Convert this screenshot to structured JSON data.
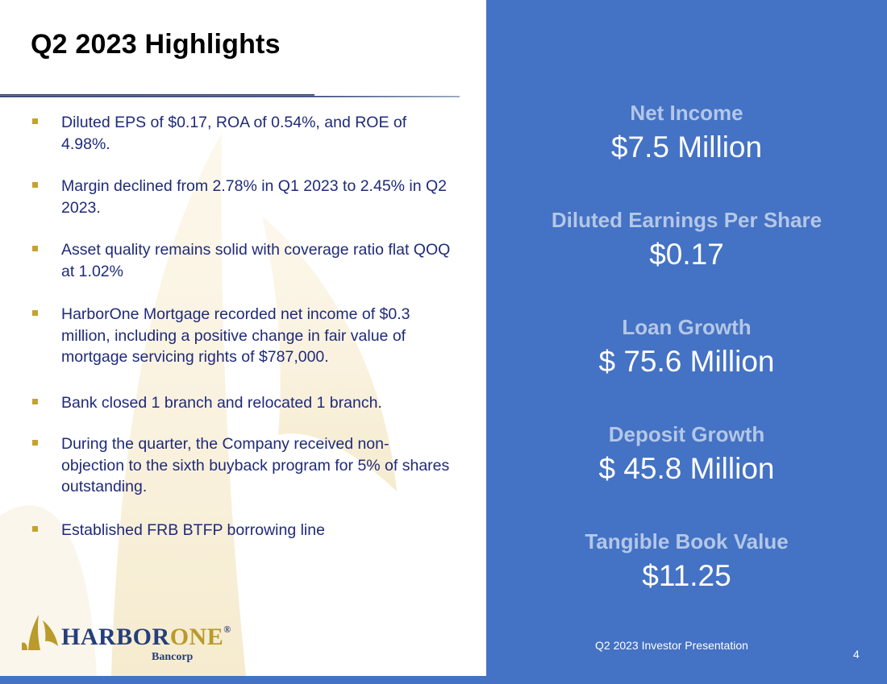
{
  "slide": {
    "title": "Q2 2023 Highlights",
    "bullets": [
      "Diluted EPS of $0.17, ROA of 0.54%, and ROE of 4.98%.",
      "Margin declined from 2.78% in Q1 2023 to 2.45% in Q2 2023.",
      "Asset quality remains solid with coverage ratio flat QOQ at 1.02%",
      "HarborOne Mortgage recorded net income of $0.3 million, including a positive change in fair value of mortgage servicing rights of $787,000.",
      "Bank closed 1 branch and relocated 1 branch.",
      "During the quarter, the Company received non-objection to the sixth buyback program  for 5% of shares outstanding.",
      "Established FRB BTFP borrowing line"
    ],
    "stats": [
      {
        "label": "Net Income",
        "value": "$7.5 Million"
      },
      {
        "label": "Diluted Earnings Per Share",
        "value": "$0.17"
      },
      {
        "label": "Loan Growth",
        "value": "$ 75.6 Million"
      },
      {
        "label": "Deposit Growth",
        "value": "$ 45.8 Million"
      },
      {
        "label": "Tangible Book Value",
        "value": "$11.25"
      }
    ],
    "footer": "Q2 2023 Investor Presentation",
    "page_number": "4"
  },
  "logo": {
    "word_part1": "HARBOR",
    "word_part2": "ONE",
    "registered": "®",
    "subtitle": "Bancorp"
  },
  "colors": {
    "panel_blue": "#4472c4",
    "stat_label": "#b4c7e7",
    "bullet_text": "#1f2a7a",
    "bullet_marker": "#c8a12c",
    "logo_navy": "#263f7a",
    "logo_gold": "#b99a2a"
  }
}
